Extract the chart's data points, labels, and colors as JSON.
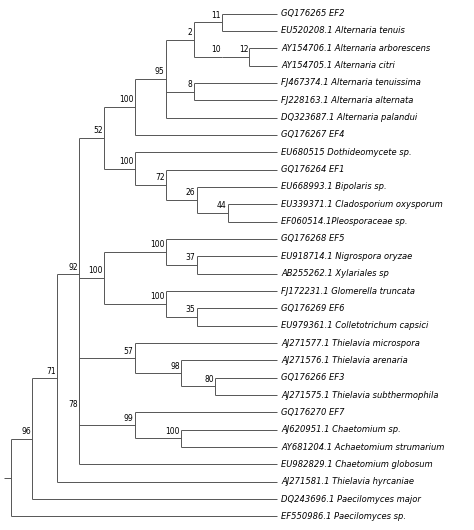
{
  "taxa": [
    "GQ176265 EF2",
    "EU520208.1 Alternaria tenuis",
    "AY154706.1 Alternaria arborescens",
    "AY154705.1 Alternaria citri",
    "FJ467374.1 Alternaria tenuissima",
    "FJ228163.1 Alternaria alternata",
    "DQ323687.1 Alternaria palandui",
    "GQ176267 EF4",
    "EU680515 Dothideomycete sp.",
    "GQ176264 EF1",
    "EU668993.1 Bipolaris sp.",
    "EU339371.1 Cladosporium oxysporum",
    "EF060514.1Pleosporaceae sp.",
    "GQ176268 EF5",
    "EU918714.1 Nigrospora oryzae",
    "AB255262.1 Xylariales sp",
    "FJ172231.1 Glomerella truncata",
    "GQ176269 EF6",
    "EU979361.1 Colletotrichum capsici",
    "AJ271577.1 Thielavia microspora",
    "AJ271576.1 Thielavia arenaria",
    "GQ176266 EF3",
    "AJ271575.1 Thielavia subthermophila",
    "GQ176270 EF7",
    "AJ620951.1 Chaetomium sp.",
    "AY681204.1 Achaetomium strumarium",
    "EU982829.1 Chaetomium globosum",
    "AJ271581.1 Thielavia hyrcaniae",
    "DQ243696.1 Paecilomyces major",
    "EF550986.1 Paecilomyces sp."
  ],
  "n_taxa": 30,
  "line_color": "#555555",
  "text_color": "#000000",
  "background_color": "#ffffff",
  "fontsize_taxa": 6.0,
  "fontsize_bootstrap": 5.5
}
